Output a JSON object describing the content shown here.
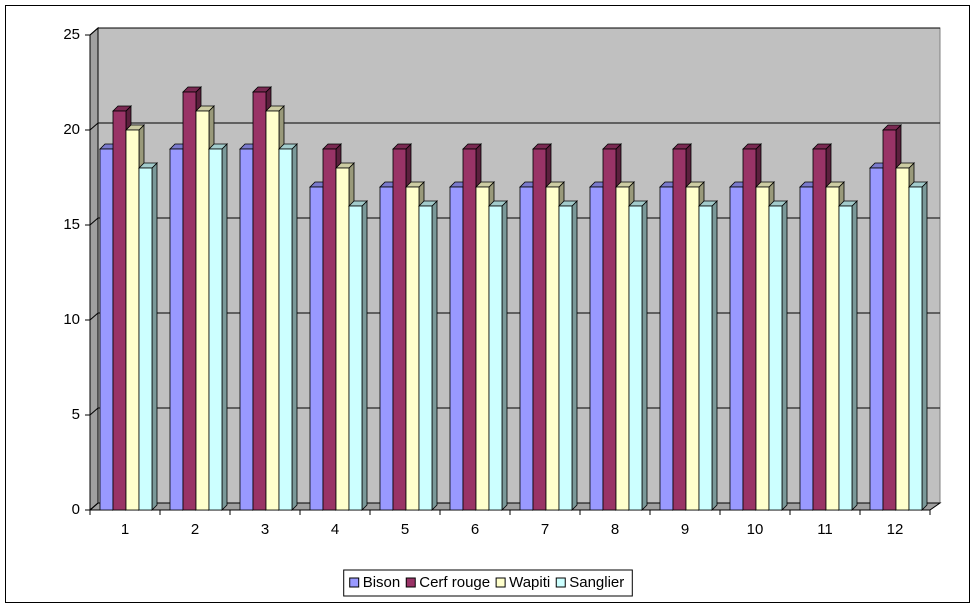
{
  "chart_data": {
    "type": "bar3d",
    "categories": [
      "1",
      "2",
      "3",
      "4",
      "5",
      "6",
      "7",
      "8",
      "9",
      "10",
      "11",
      "12"
    ],
    "series": [
      {
        "name": "Bison",
        "color": "#9999ff",
        "values": [
          19,
          19,
          19,
          17,
          17,
          17,
          17,
          17,
          17,
          17,
          17,
          18
        ]
      },
      {
        "name": "Cerf rouge",
        "color": "#993366",
        "values": [
          21,
          22,
          22,
          19,
          19,
          19,
          19,
          19,
          19,
          19,
          19,
          20
        ]
      },
      {
        "name": "Wapiti",
        "color": "#ffffcc",
        "values": [
          20,
          21,
          21,
          18,
          17,
          17,
          17,
          17,
          17,
          17,
          17,
          18
        ]
      },
      {
        "name": "Sanglier",
        "color": "#ccffff",
        "values": [
          18,
          19,
          19,
          16,
          16,
          16,
          16,
          16,
          16,
          16,
          16,
          17
        ]
      }
    ],
    "ylim": [
      0,
      25
    ],
    "yticks": [
      0,
      5,
      10,
      15,
      20,
      25
    ],
    "grid": true,
    "legend": "bottom"
  }
}
